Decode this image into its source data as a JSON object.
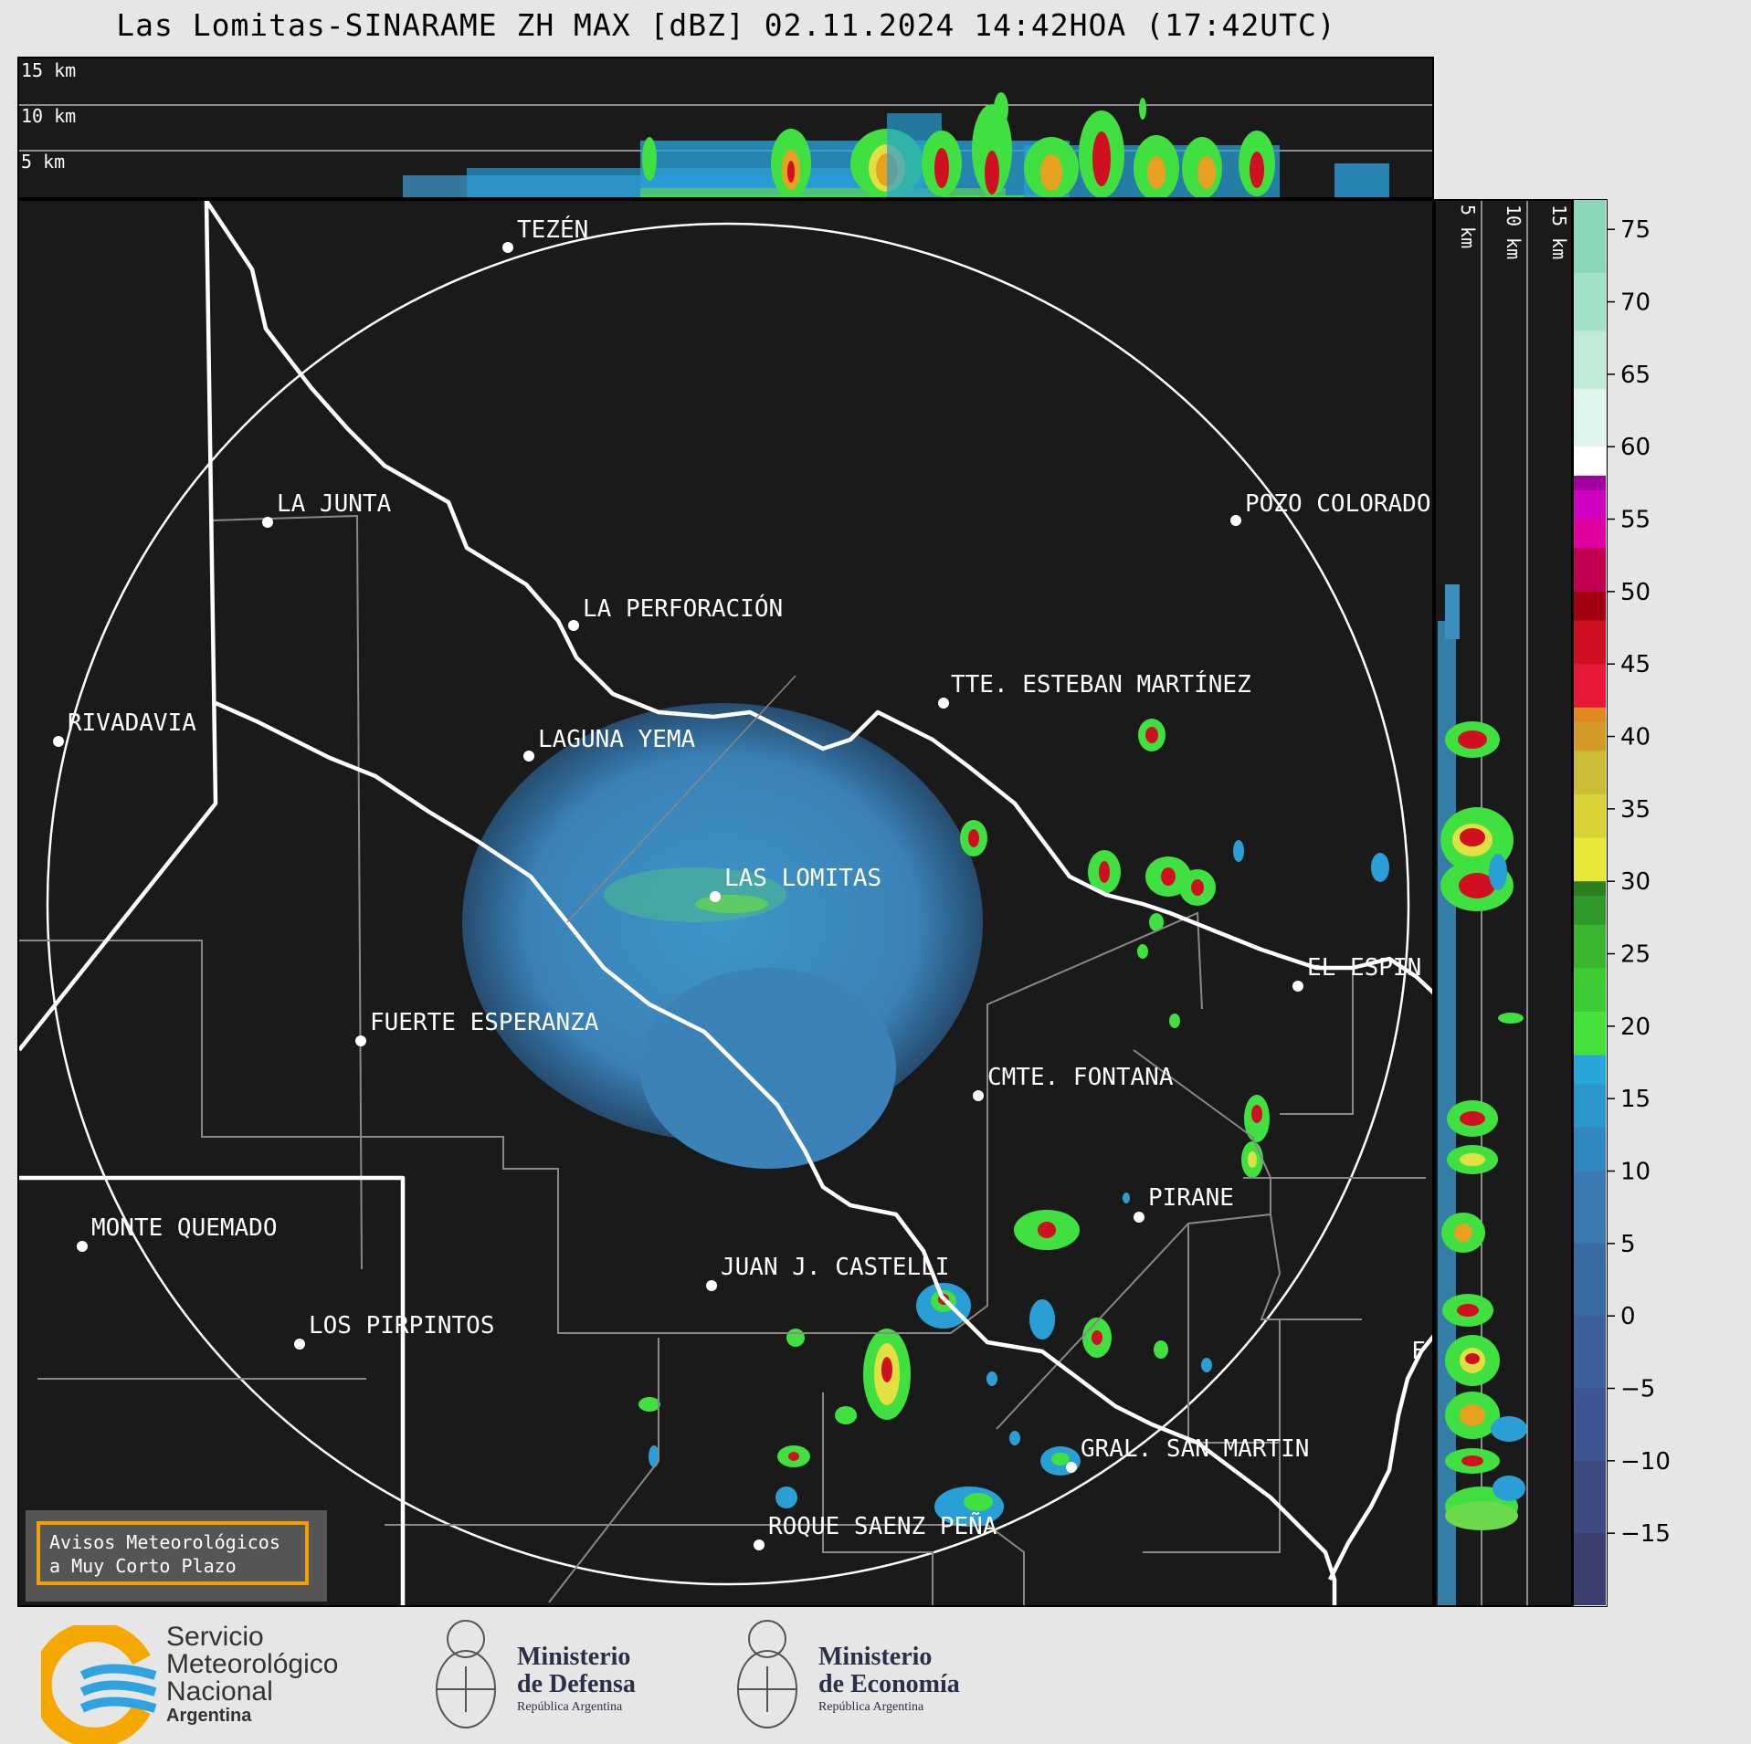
{
  "title": "Las Lomitas-SINARAME ZH MAX [dBZ] 02.11.2024 14:42HOA (17:42UTC)",
  "altitude_labels": [
    "15 km",
    "10 km",
    "5 km"
  ],
  "map": {
    "towns": [
      {
        "name": "TEZÉN",
        "x": -58,
        "y": -23
      },
      {
        "name": "LA JUNTA",
        "x": -60,
        "y": -24
      },
      {
        "name": "POZO COLORADO",
        "x": -57,
        "y": -24
      },
      {
        "name": "LA PERFORACIÓN",
        "x": -58,
        "y": -24
      },
      {
        "name": "TTE. ESTEBAN MARTÍNEZ",
        "x": -57,
        "y": -24
      },
      {
        "name": "RIVADAVIA",
        "x": -60,
        "y": -24
      },
      {
        "name": "LAGUNA YEMA",
        "x": -59,
        "y": -24
      },
      {
        "name": "LAS LOMITAS",
        "x": -60,
        "y": -24
      },
      {
        "name": "EL ESPIN",
        "x": -57,
        "y": -25
      },
      {
        "name": "FUERTE ESPERANZA",
        "x": -61,
        "y": -25
      },
      {
        "name": "CMTE. FONTANA",
        "x": -59,
        "y": -25
      },
      {
        "name": "PIRANE",
        "x": -59,
        "y": -26
      },
      {
        "name": "MONTE QUEMADO",
        "x": -62,
        "y": -26
      },
      {
        "name": "JUAN J. CASTELLI",
        "x": -60,
        "y": -26
      },
      {
        "name": "LOS PIRPINTOS",
        "x": -62,
        "y": -26
      },
      {
        "name": "GRAL. SAN MARTIN",
        "x": -59,
        "y": -26
      },
      {
        "name": "ROQUE SAENZ PEÑA",
        "x": -60,
        "y": -26
      },
      {
        "name": "F",
        "x": -58,
        "y": -26
      }
    ],
    "warning_box": [
      "Avisos Meteorológicos",
      "a Muy Corto Plazo"
    ]
  },
  "side_altitude_labels": [
    "5 km",
    "10 km",
    "15 km"
  ],
  "colorbar": {
    "unit": "dBZ",
    "ticks": [
      "75",
      "70",
      "65",
      "60",
      "55",
      "50",
      "45",
      "40",
      "35",
      "30",
      "25",
      "20",
      "15",
      "10",
      "5",
      "0",
      "−5",
      "−10",
      "−15"
    ],
    "range": [
      -20,
      77
    ]
  },
  "logos": {
    "smn": [
      "Servicio",
      "Meteorológico",
      "Nacional",
      "Argentina"
    ],
    "defensa": [
      "Ministerio",
      "de Defensa",
      "República Argentina"
    ],
    "economia": [
      "Ministerio",
      "de Economía",
      "República Argentina"
    ]
  }
}
